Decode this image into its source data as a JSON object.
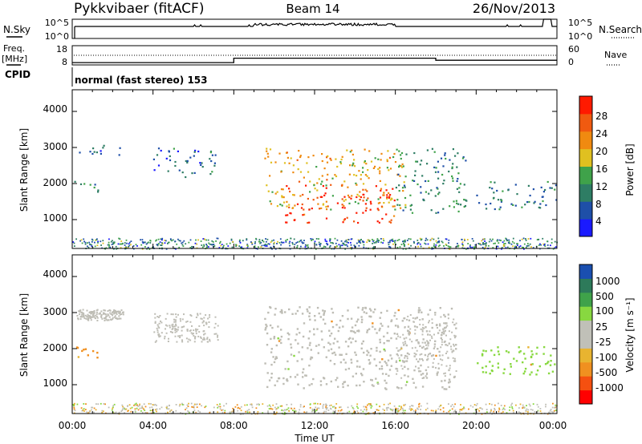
{
  "header": {
    "radar": "Pykkvibaer (fitACF)",
    "beam": "Beam 14",
    "date": "26/Nov/2013"
  },
  "nsky_panel": {
    "label": "N.Sky",
    "right_label": "N.Search",
    "left_ticks": [
      "10^5",
      "10^0"
    ],
    "right_ticks": [
      "10^5",
      "10^0"
    ]
  },
  "freq_panel": {
    "label_line1": "Freq.",
    "label_line2": "[MHz]",
    "left_ticks": [
      "18",
      "8"
    ],
    "right_label": "Nave",
    "right_ticks": [
      "60",
      "0"
    ]
  },
  "cpid": {
    "label": "CPID",
    "text": "normal (fast stereo) 153"
  },
  "colors": {
    "power_scale": [
      "#1a1aff",
      "#1e4fa8",
      "#2e7d64",
      "#3fa24a",
      "#e0c020",
      "#f08a10",
      "#f05a10",
      "#ff1a00"
    ],
    "velocity_scale": [
      "#ff0000",
      "#f55010",
      "#f09020",
      "#e8b430",
      "#c0c0b8",
      "#c0c0b8",
      "#88d840",
      "#3fa24a",
      "#2d7a5a",
      "#1a4fb0"
    ],
    "gray_scatter": "#bebdb5"
  },
  "power_panel": {
    "ylabel": "Slant Range [km]",
    "yticks": [
      "4000",
      "3000",
      "2000",
      "1000"
    ],
    "colorbar_label": "Power [dB]",
    "colorbar_ticks": [
      "28",
      "24",
      "20",
      "16",
      "12",
      "8",
      "4"
    ]
  },
  "velocity_panel": {
    "ylabel": "Slant Range [km]",
    "yticks": [
      "4000",
      "3000",
      "2000",
      "1000"
    ],
    "colorbar_label": "Velocity [m s⁻¹]",
    "colorbar_ticks": [
      "1000",
      "500",
      "100",
      "25",
      "-25",
      "-100",
      "-500",
      "-1000"
    ]
  },
  "x_axis": {
    "label": "Time UT",
    "ticks": [
      "00:00",
      "04:00",
      "08:00",
      "12:00",
      "16:00",
      "20:00",
      "00:00"
    ]
  },
  "chart_data": {
    "type": "heatmap",
    "title": "Pykkvibaer (fitACF)",
    "x_unit": "hours UT",
    "xlim": [
      0,
      24
    ],
    "ylim": [
      200,
      4600
    ],
    "power_range_db": [
      0,
      30
    ],
    "velocity_range": [
      -1000,
      1000
    ],
    "freq_range_mhz": [
      8,
      18
    ],
    "freq_steps": [
      {
        "start": 0,
        "end": 8,
        "mhz": 9.2
      },
      {
        "start": 8,
        "end": 18,
        "mhz": 11.5
      },
      {
        "start": 18,
        "end": 24,
        "mhz": 10.4
      }
    ],
    "nsky_activity": [
      {
        "start": 0.3,
        "end": 23.3,
        "level": "low"
      },
      {
        "start": 9.0,
        "end": 16.0,
        "level": "raised"
      },
      {
        "start": 23.3,
        "end": 23.7,
        "level": "spike"
      }
    ],
    "power_echo_regions": [
      {
        "t0": 0.1,
        "t1": 1.5,
        "r0": 1750,
        "r1": 2100,
        "db": 10
      },
      {
        "t0": 0.2,
        "t1": 2.5,
        "r0": 2800,
        "r1": 3100,
        "db": 6
      },
      {
        "t0": 4.0,
        "t1": 7.2,
        "r0": 2200,
        "r1": 3000,
        "db": 7
      },
      {
        "t0": 9.5,
        "t1": 16.5,
        "r0": 1300,
        "r1": 3000,
        "db": 18
      },
      {
        "t0": 10.5,
        "t1": 16.0,
        "r0": 900,
        "r1": 2000,
        "db": 27
      },
      {
        "t0": 16.0,
        "t1": 19.5,
        "r0": 1200,
        "r1": 3000,
        "db": 10
      },
      {
        "t0": 20.0,
        "t1": 24.0,
        "r0": 1300,
        "r1": 2100,
        "db": 9
      }
    ],
    "velocity_echo_regions": [
      {
        "t0": 0.1,
        "t1": 1.5,
        "r0": 1750,
        "r1": 2100,
        "v": -200
      },
      {
        "t0": 9.5,
        "t1": 19.0,
        "r0": 900,
        "r1": 3200,
        "v": 0
      },
      {
        "t0": 20.0,
        "t1": 24.0,
        "r0": 1300,
        "r1": 2100,
        "v": 150
      }
    ]
  }
}
